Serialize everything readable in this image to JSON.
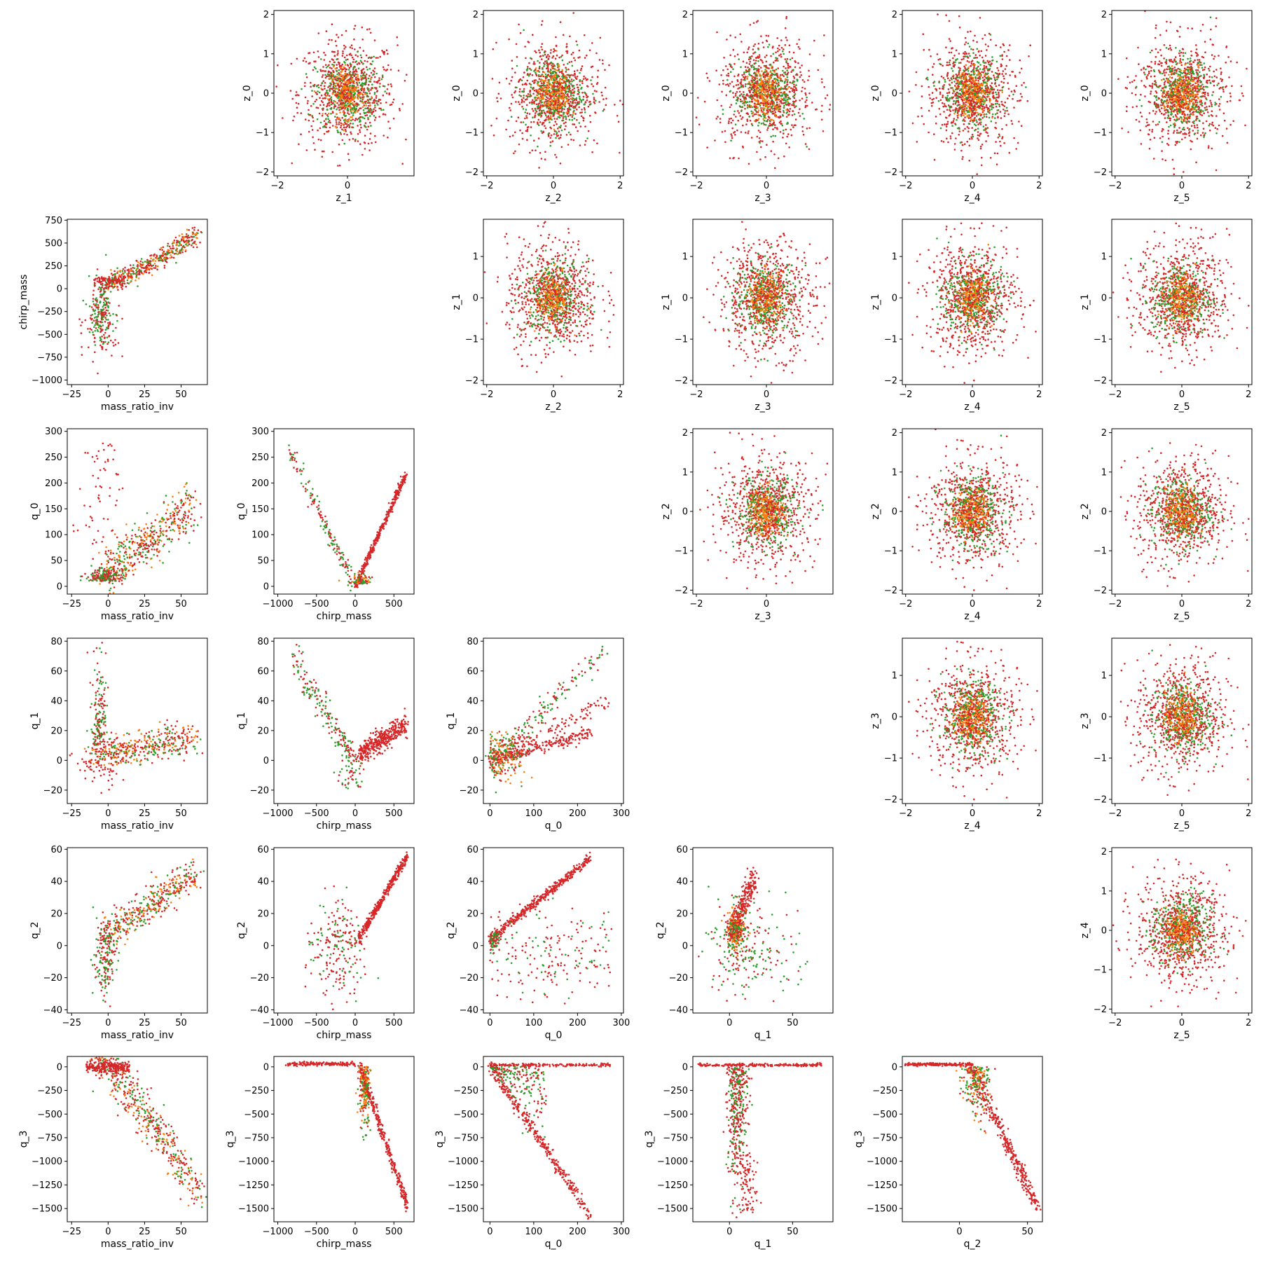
{
  "chart_data": {
    "type": "scatter",
    "layout": "lower and upper triangle pairwise scatter matrix",
    "colors": {
      "series_a": "#2ca02c",
      "series_b": "#ff7f0e",
      "series_c": "#d62728"
    },
    "axes_defs": {
      "mass_ratio_inv": {
        "label": "mass_ratio_inv",
        "range": [
          -28,
          68
        ],
        "ticks": [
          -25,
          0,
          25,
          50
        ]
      },
      "chirp_mass": {
        "label": "chirp_mass",
        "range": [
          -1050,
          760
        ],
        "ticks": [
          -1000,
          -750,
          -500,
          -250,
          0,
          250,
          500,
          750
        ]
      },
      "chirp_mass_x": {
        "label": "chirp_mass",
        "range": [
          -1050,
          760
        ],
        "ticks": [
          -1000,
          -500,
          0,
          500
        ]
      },
      "q_0": {
        "label": "q_0",
        "range": [
          -15,
          305
        ],
        "ticks": [
          0,
          50,
          100,
          150,
          200,
          250,
          300
        ]
      },
      "q_0_x": {
        "label": "q_0",
        "range": [
          -15,
          305
        ],
        "ticks": [
          0,
          100,
          200,
          300
        ]
      },
      "q_1": {
        "label": "q_1",
        "range": [
          -29,
          82
        ],
        "ticks": [
          -20,
          0,
          20,
          40,
          60,
          80
        ]
      },
      "q_1_x": {
        "label": "q_1",
        "range": [
          -29,
          82
        ],
        "ticks": [
          0,
          50
        ]
      },
      "q_2": {
        "label": "q_2",
        "range": [
          -42,
          61
        ],
        "ticks": [
          -40,
          -20,
          0,
          20,
          40,
          60
        ]
      },
      "q_2_x": {
        "label": "q_2",
        "range": [
          -42,
          61
        ],
        "ticks": [
          0,
          50
        ]
      },
      "q_3": {
        "label": "q_3",
        "range": [
          -1640,
          110
        ],
        "ticks": [
          -1500,
          -1250,
          -1000,
          -750,
          -500,
          -250,
          0
        ]
      },
      "z_0": {
        "label": "z_0",
        "range": [
          -2.1,
          2.1
        ],
        "ticks": [
          -2,
          -1,
          0,
          1,
          2
        ]
      },
      "z_1": {
        "label": "z_1",
        "range": [
          -2.1,
          1.9
        ],
        "ticks": [
          -2,
          -1,
          0,
          1
        ]
      },
      "z_1_x": {
        "label": "z_1",
        "range": [
          -2.1,
          1.9
        ],
        "ticks": [
          -2,
          0,
          2
        ]
      },
      "z_2": {
        "label": "z_2",
        "range": [
          -2.1,
          2.1
        ],
        "ticks": [
          -2,
          -1,
          0,
          1,
          2
        ]
      },
      "z_2_x": {
        "label": "z_2",
        "range": [
          -2.1,
          2.1
        ],
        "ticks": [
          -2,
          0,
          2
        ]
      },
      "z_3": {
        "label": "z_3",
        "range": [
          -2.1,
          1.9
        ],
        "ticks": [
          -2,
          -1,
          0,
          1
        ]
      },
      "z_3_x": {
        "label": "z_3",
        "range": [
          -2.1,
          1.9
        ],
        "ticks": [
          -2,
          0,
          2
        ]
      },
      "z_4": {
        "label": "z_4",
        "range": [
          -2.1,
          2.1
        ],
        "ticks": [
          -2,
          -1,
          0,
          1,
          2
        ]
      },
      "z_4_x": {
        "label": "z_4",
        "range": [
          -2.1,
          2.1
        ],
        "ticks": [
          -2,
          0,
          2
        ]
      },
      "z_5_x": {
        "label": "z_5",
        "range": [
          -2.1,
          2.1
        ],
        "ticks": [
          -2,
          0,
          2
        ]
      }
    },
    "panels": [
      {
        "row": 0,
        "col": 1,
        "x": "z_1_x",
        "y": "z_0",
        "pattern": "blob"
      },
      {
        "row": 0,
        "col": 2,
        "x": "z_2_x",
        "y": "z_0",
        "pattern": "blob"
      },
      {
        "row": 0,
        "col": 3,
        "x": "z_3_x",
        "y": "z_0",
        "pattern": "blob"
      },
      {
        "row": 0,
        "col": 4,
        "x": "z_4_x",
        "y": "z_0",
        "pattern": "blob"
      },
      {
        "row": 0,
        "col": 5,
        "x": "z_5_x",
        "y": "z_0",
        "pattern": "blob"
      },
      {
        "row": 1,
        "col": 0,
        "x": "mass_ratio_inv",
        "y": "chirp_mass",
        "pattern": "mri_cm"
      },
      {
        "row": 1,
        "col": 2,
        "x": "z_2_x",
        "y": "z_1",
        "pattern": "blob"
      },
      {
        "row": 1,
        "col": 3,
        "x": "z_3_x",
        "y": "z_1",
        "pattern": "blob"
      },
      {
        "row": 1,
        "col": 4,
        "x": "z_4_x",
        "y": "z_1",
        "pattern": "blob"
      },
      {
        "row": 1,
        "col": 5,
        "x": "z_5_x",
        "y": "z_1",
        "pattern": "blob"
      },
      {
        "row": 2,
        "col": 0,
        "x": "mass_ratio_inv",
        "y": "q_0",
        "pattern": "mri_q0"
      },
      {
        "row": 2,
        "col": 1,
        "x": "chirp_mass_x",
        "y": "q_0",
        "pattern": "cm_q0"
      },
      {
        "row": 2,
        "col": 3,
        "x": "z_3_x",
        "y": "z_2",
        "pattern": "blob"
      },
      {
        "row": 2,
        "col": 4,
        "x": "z_4_x",
        "y": "z_2",
        "pattern": "blob"
      },
      {
        "row": 2,
        "col": 5,
        "x": "z_5_x",
        "y": "z_2",
        "pattern": "blob"
      },
      {
        "row": 3,
        "col": 0,
        "x": "mass_ratio_inv",
        "y": "q_1",
        "pattern": "mri_q1"
      },
      {
        "row": 3,
        "col": 1,
        "x": "chirp_mass_x",
        "y": "q_1",
        "pattern": "cm_q1"
      },
      {
        "row": 3,
        "col": 2,
        "x": "q_0_x",
        "y": "q_1",
        "pattern": "q0_q1"
      },
      {
        "row": 3,
        "col": 4,
        "x": "z_4_x",
        "y": "z_3",
        "pattern": "blob"
      },
      {
        "row": 3,
        "col": 5,
        "x": "z_5_x",
        "y": "z_3",
        "pattern": "blob"
      },
      {
        "row": 4,
        "col": 0,
        "x": "mass_ratio_inv",
        "y": "q_2",
        "pattern": "mri_q2"
      },
      {
        "row": 4,
        "col": 1,
        "x": "chirp_mass_x",
        "y": "q_2",
        "pattern": "cm_q2"
      },
      {
        "row": 4,
        "col": 2,
        "x": "q_0_x",
        "y": "q_2",
        "pattern": "q0_q2"
      },
      {
        "row": 4,
        "col": 3,
        "x": "q_1_x",
        "y": "q_2",
        "pattern": "q1_q2"
      },
      {
        "row": 4,
        "col": 5,
        "x": "z_5_x",
        "y": "z_4",
        "pattern": "blob"
      },
      {
        "row": 5,
        "col": 0,
        "x": "mass_ratio_inv",
        "y": "q_3",
        "pattern": "mri_q3"
      },
      {
        "row": 5,
        "col": 1,
        "x": "chirp_mass_x",
        "y": "q_3",
        "pattern": "cm_q3"
      },
      {
        "row": 5,
        "col": 2,
        "x": "q_0_x",
        "y": "q_3",
        "pattern": "q0_q3"
      },
      {
        "row": 5,
        "col": 3,
        "x": "q_1_x",
        "y": "q_3",
        "pattern": "q1_q3"
      },
      {
        "row": 5,
        "col": 4,
        "x": "q_2_x",
        "y": "q_3",
        "pattern": "q2_q3"
      }
    ],
    "grid": false,
    "legend": "none"
  }
}
